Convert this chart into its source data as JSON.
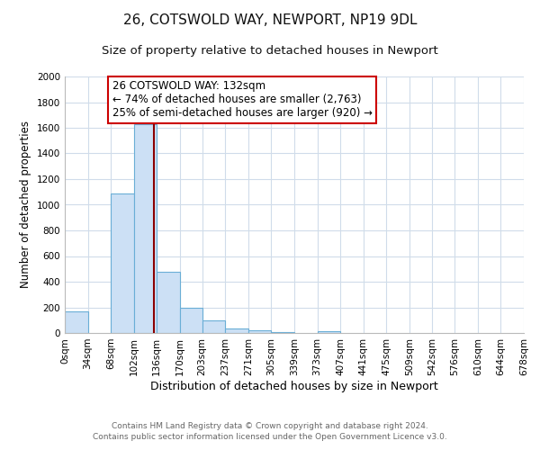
{
  "title": "26, COTSWOLD WAY, NEWPORT, NP19 9DL",
  "subtitle": "Size of property relative to detached houses in Newport",
  "xlabel": "Distribution of detached houses by size in Newport",
  "ylabel": "Number of detached properties",
  "bar_fill_color": "#cce0f5",
  "bar_edge_color": "#6aaed6",
  "background_color": "#ffffff",
  "grid_color": "#d0dcea",
  "ylim": [
    0,
    2000
  ],
  "yticks": [
    0,
    200,
    400,
    600,
    800,
    1000,
    1200,
    1400,
    1600,
    1800,
    2000
  ],
  "bin_edges": [
    0,
    34,
    68,
    102,
    136,
    170,
    203,
    237,
    271,
    305,
    339,
    373,
    407,
    441,
    475,
    509,
    542,
    576,
    610,
    644,
    678
  ],
  "bar_heights": [
    165,
    0,
    1085,
    1630,
    480,
    200,
    100,
    35,
    20,
    10,
    0,
    15,
    0,
    0,
    0,
    0,
    0,
    0,
    0,
    0
  ],
  "property_size": 132,
  "vline_color": "#8b0000",
  "annotation_text": "26 COTSWOLD WAY: 132sqm\n← 74% of detached houses are smaller (2,763)\n25% of semi-detached houses are larger (920) →",
  "annotation_box_color": "#ffffff",
  "annotation_box_edge_color": "#cc0000",
  "footer_line1": "Contains HM Land Registry data © Crown copyright and database right 2024.",
  "footer_line2": "Contains public sector information licensed under the Open Government Licence v3.0.",
  "title_fontsize": 11,
  "subtitle_fontsize": 9.5,
  "xlabel_fontsize": 9,
  "ylabel_fontsize": 8.5,
  "tick_fontsize": 7.5,
  "annotation_fontsize": 8.5,
  "footer_fontsize": 6.5
}
